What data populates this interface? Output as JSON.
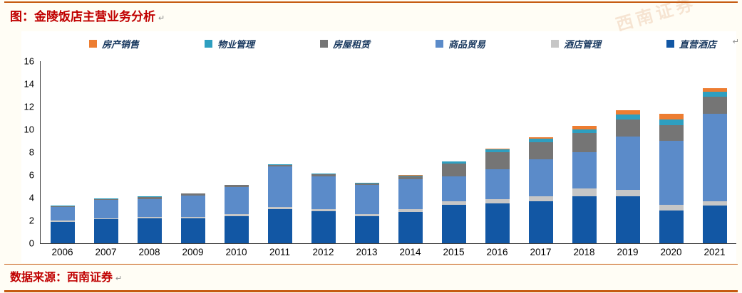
{
  "title": "图：金陵饭店主营业务分析",
  "source": "数据来源：西南证券",
  "watermark": "西南证券",
  "marks": {
    "return_mark": "↵"
  },
  "colors": {
    "rule": "#c55a11",
    "title": "#c00000",
    "source": "#c00000",
    "legend_text": "#17375e",
    "axis_text": "#000000",
    "axis_line": "#404040",
    "background": "#fffdf5",
    "chart_bg": "#ffffff"
  },
  "chart_data": {
    "type": "bar",
    "stacked": true,
    "title": "图：金陵饭店主营业务分析",
    "xlabel": "",
    "ylabel": "",
    "ylim": [
      0,
      16
    ],
    "yticks": [
      0,
      2,
      4,
      6,
      8,
      10,
      12,
      14,
      16
    ],
    "grid": false,
    "legend_position": "top",
    "categories": [
      "2006",
      "2007",
      "2008",
      "2009",
      "2010",
      "2011",
      "2012",
      "2013",
      "2014",
      "2015",
      "2016",
      "2017",
      "2018",
      "2019",
      "2020",
      "2021"
    ],
    "legend": [
      {
        "label": "房产销售",
        "color": "#ed7d31"
      },
      {
        "label": "物业管理",
        "color": "#2e9fc0"
      },
      {
        "label": "房屋租赁",
        "color": "#757575"
      },
      {
        "label": "商品贸易",
        "color": "#5b8bc9"
      },
      {
        "label": "酒店管理",
        "color": "#c6c6c6"
      },
      {
        "label": "直营酒店",
        "color": "#1257a4"
      }
    ],
    "series": [
      {
        "name": "直营酒店",
        "values": [
          1.9,
          2.1,
          2.2,
          2.2,
          2.4,
          3.0,
          2.8,
          2.35,
          2.75,
          3.4,
          3.5,
          3.7,
          4.1,
          4.1,
          2.9,
          3.3
        ]
      },
      {
        "name": "酒店管理",
        "values": [
          0.1,
          0.1,
          0.1,
          0.1,
          0.15,
          0.2,
          0.2,
          0.2,
          0.25,
          0.3,
          0.35,
          0.4,
          0.7,
          0.6,
          0.5,
          0.4
        ]
      },
      {
        "name": "商品贸易",
        "values": [
          1.2,
          1.6,
          1.6,
          1.9,
          2.4,
          3.55,
          2.9,
          2.55,
          2.6,
          2.2,
          2.65,
          3.3,
          3.2,
          4.7,
          5.6,
          7.7
        ]
      },
      {
        "name": "房屋租赁",
        "values": [
          0.05,
          0.1,
          0.15,
          0.15,
          0.15,
          0.15,
          0.15,
          0.15,
          0.25,
          1.1,
          1.5,
          1.5,
          1.7,
          1.5,
          1.4,
          1.5
        ]
      },
      {
        "name": "物业管理",
        "values": [
          0.05,
          0.05,
          0.05,
          0.05,
          0.05,
          0.05,
          0.05,
          0.05,
          0.1,
          0.2,
          0.25,
          0.3,
          0.3,
          0.4,
          0.5,
          0.4
        ]
      },
      {
        "name": "房产销售",
        "values": [
          0,
          0,
          0,
          0,
          0,
          0,
          0,
          0,
          0.05,
          0,
          0.05,
          0.1,
          0.3,
          0.4,
          0.5,
          0.3
        ]
      }
    ]
  }
}
